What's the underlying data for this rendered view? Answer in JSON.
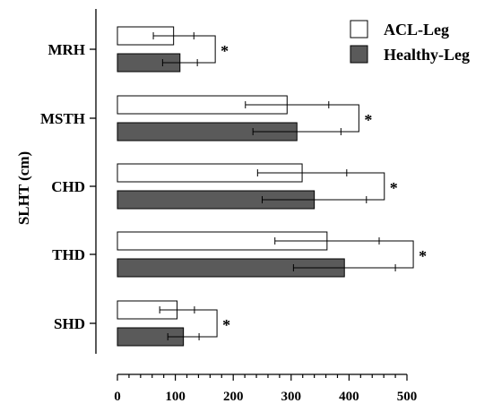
{
  "chart_data": {
    "type": "bar",
    "orientation": "horizontal",
    "title": "",
    "ylabel": "SLHT (cm)",
    "xlabel": "",
    "categories": [
      "MRH",
      "MSTH",
      "CHD",
      "THD",
      "SHD"
    ],
    "xlim": [
      0,
      500
    ],
    "xticks": [
      "0",
      "100",
      "200",
      "300",
      "400",
      "500"
    ],
    "series": [
      {
        "name": "ACL-Leg",
        "color": "#ffffff",
        "values": [
          97,
          293,
          319,
          362,
          103
        ],
        "errors": [
          35,
          72,
          77,
          90,
          30
        ]
      },
      {
        "name": "Healthy-Leg",
        "color": "#5a5a5a",
        "values": [
          108,
          310,
          340,
          392,
          114
        ],
        "errors": [
          30,
          76,
          90,
          88,
          27
        ]
      }
    ],
    "significance": [
      "*",
      "*",
      "*",
      "*",
      "*"
    ],
    "legend_position": "top-right",
    "grid": false
  }
}
